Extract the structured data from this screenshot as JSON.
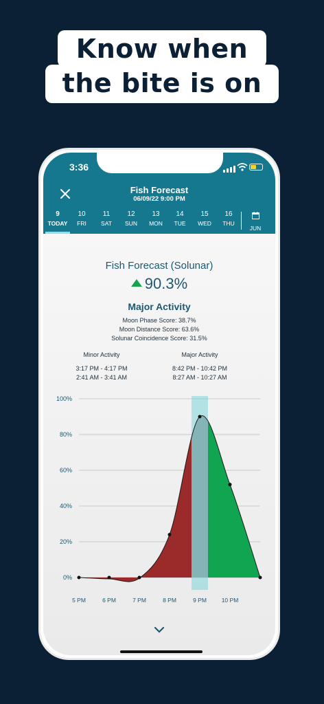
{
  "headline": {
    "line1": "Know when",
    "line2": "the bite is on"
  },
  "status_bar": {
    "time": "3:36"
  },
  "header": {
    "title": "Fish Forecast",
    "subtitle": "06/09/22 9:00 PM"
  },
  "days": [
    {
      "num": "9",
      "label": "TODAY",
      "active": true
    },
    {
      "num": "10",
      "label": "FRI"
    },
    {
      "num": "11",
      "label": "SAT"
    },
    {
      "num": "12",
      "label": "SUN"
    },
    {
      "num": "13",
      "label": "MON"
    },
    {
      "num": "14",
      "label": "TUE"
    },
    {
      "num": "15",
      "label": "WED"
    },
    {
      "num": "16",
      "label": "THU"
    }
  ],
  "calendar": {
    "label": "JUN",
    "icon": "calendar-icon"
  },
  "forecast": {
    "title": "Fish Forecast (Solunar)",
    "score": "90.3%",
    "trend": "up-arrow",
    "activity": "Major Activity",
    "metrics": [
      "Moon Phase Score:  38.7%",
      "Moon Distance Score:  63.6%",
      "Solunar Coincidence Score:  31.5%"
    ],
    "minor": {
      "heading": "Minor Activity",
      "times": [
        "3:17 PM - 4:17 PM",
        "2:41 AM - 3:41 AM"
      ]
    },
    "major": {
      "heading": "Major Activity",
      "times": [
        "8:42 PM - 10:42 PM",
        "8:27 AM - 10:27 AM"
      ]
    }
  },
  "colors": {
    "header": "#15788f",
    "past": "#9b2a2a",
    "future": "#10a551",
    "now": "#7fd6d8",
    "accent": "#1d5870"
  },
  "chart_data": {
    "type": "area",
    "x_labels": [
      "5 PM",
      "6 PM",
      "7 PM",
      "8 PM",
      "9 PM",
      "10 PM"
    ],
    "y_ticks": [
      "100%",
      "80%",
      "60%",
      "40%",
      "20%",
      "0%"
    ],
    "ylim": [
      0,
      100
    ],
    "x": [
      17,
      18,
      19,
      20,
      21,
      22,
      23
    ],
    "y": [
      0,
      0,
      0,
      24,
      90,
      52,
      0
    ],
    "current_time": 21,
    "current_value": 90.3
  }
}
